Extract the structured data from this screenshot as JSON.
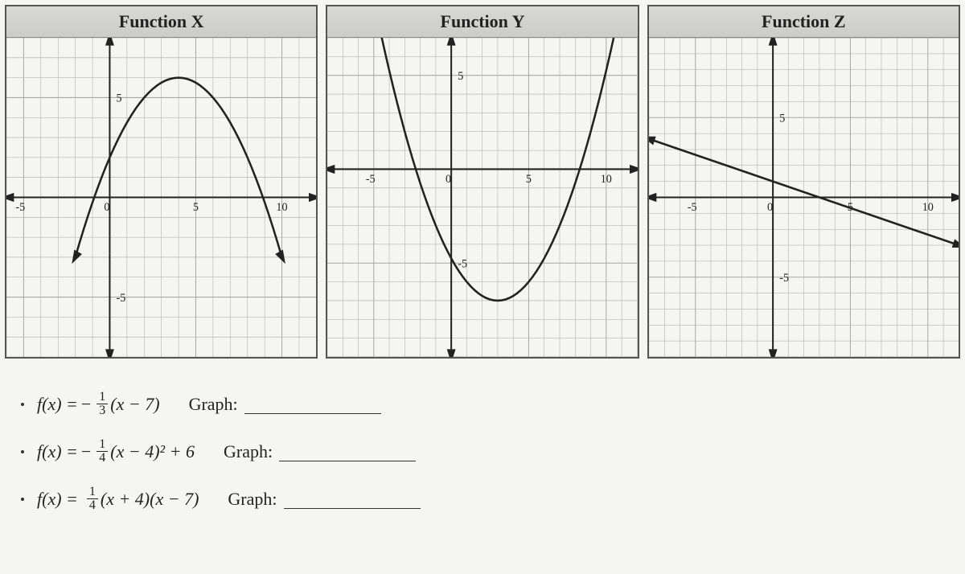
{
  "panels": [
    {
      "title": "Function X",
      "xlim": [
        -6,
        12
      ],
      "ylim": [
        -8,
        8
      ],
      "xticks": [
        -5,
        0,
        5,
        10
      ],
      "yticks": [
        -5,
        5
      ],
      "yaxis_at_x": 0,
      "type": "parabola",
      "curve": {
        "a": -0.25,
        "h": 4,
        "k": 6,
        "x_from": -2,
        "x_to": 10,
        "step": 0.25
      },
      "arrows": [
        "left",
        "right",
        "up",
        "down",
        "curve-down-left",
        "curve-down-right"
      ],
      "stroke": "#222",
      "grid_color": "#a8a8a6",
      "grid_major_color": "#888",
      "bg_color": "#f5f5f3"
    },
    {
      "title": "Function Y",
      "xlim": [
        -8,
        12
      ],
      "ylim": [
        -10,
        7
      ],
      "xticks": [
        -5,
        0,
        5,
        10
      ],
      "yticks": [
        -5,
        5
      ],
      "yaxis_at_x": 0,
      "type": "parabola",
      "curve": {
        "a": 0.25,
        "h": 3,
        "k": -7,
        "x_from": -5,
        "x_to": 11,
        "step": 0.25
      },
      "arrows": [
        "left",
        "right",
        "up",
        "down",
        "curve-up-left",
        "curve-up-right"
      ],
      "stroke": "#222",
      "grid_color": "#a8a8a6",
      "grid_major_color": "#888",
      "bg_color": "#f5f5f3"
    },
    {
      "title": "Function Z",
      "xlim": [
        -8,
        12
      ],
      "ylim": [
        -10,
        10
      ],
      "xticks": [
        -5,
        0,
        5,
        10
      ],
      "yticks": [
        -5,
        5
      ],
      "yaxis_at_x": 0,
      "type": "line",
      "line": {
        "m": -0.3333,
        "b": 1,
        "x_from": -8,
        "x_to": 12
      },
      "arrows": [
        "left",
        "right",
        "up",
        "down",
        "line-left",
        "line-right"
      ],
      "stroke": "#222",
      "grid_color": "#a8a8a6",
      "grid_major_color": "#888",
      "bg_color": "#f5f5f3"
    }
  ],
  "equations": [
    {
      "lhs": "f(x) =",
      "sign": "−",
      "frac_num": "1",
      "frac_den": "3",
      "tail": "(x − 7)",
      "graph_label": "Graph:"
    },
    {
      "lhs": "f(x) =",
      "sign": "−",
      "frac_num": "1",
      "frac_den": "4",
      "tail": "(x − 4)² + 6",
      "graph_label": "Graph:"
    },
    {
      "lhs": "f(x) =",
      "sign": "",
      "frac_num": "1",
      "frac_den": "4",
      "tail": "(x + 4)(x − 7)",
      "graph_label": "Graph:"
    }
  ],
  "fonts": {
    "header_size_pt": 22,
    "eq_size_pt": 22,
    "tick_size_pt": 14
  },
  "colors": {
    "page_bg": "#f5f5f3",
    "border": "#555555",
    "text": "#222222"
  }
}
